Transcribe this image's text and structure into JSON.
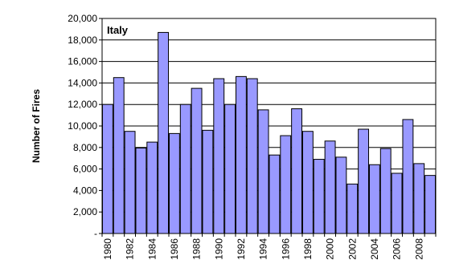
{
  "chart_data": {
    "type": "bar",
    "panel_label": "Italy",
    "ylabel": "Number of Fires",
    "xlabel": "",
    "ylim": [
      0,
      20000
    ],
    "y_ticks": [
      0,
      2000,
      4000,
      6000,
      8000,
      10000,
      12000,
      14000,
      16000,
      18000,
      20000
    ],
    "y_tick_labels": [
      "-",
      "2,000",
      "4,000",
      "6,000",
      "8,000",
      "10,000",
      "12,000",
      "14,000",
      "16,000",
      "18,000",
      "20,000"
    ],
    "categories": [
      1980,
      1981,
      1982,
      1983,
      1984,
      1985,
      1986,
      1987,
      1988,
      1989,
      1990,
      1991,
      1992,
      1993,
      1994,
      1995,
      1996,
      1997,
      1998,
      1999,
      2000,
      2001,
      2002,
      2003,
      2004,
      2005,
      2006,
      2007,
      2008,
      2009
    ],
    "x_tick_labels": [
      "1980",
      "1982",
      "1984",
      "1986",
      "1988",
      "1990",
      "1992",
      "1994",
      "1996",
      "1998",
      "2000",
      "2002",
      "2004",
      "2006",
      "2008"
    ],
    "values": [
      12000,
      14500,
      9500,
      7950,
      8500,
      18700,
      9300,
      12000,
      13500,
      9600,
      14400,
      12000,
      14600,
      14400,
      11500,
      7300,
      9100,
      11600,
      9500,
      6900,
      8600,
      7100,
      4600,
      9700,
      6400,
      7900,
      5600,
      10600,
      6500,
      5400
    ],
    "bar_color": "#9999ff",
    "bar_edge_color": "#000000",
    "grid": true,
    "legend": "none"
  }
}
